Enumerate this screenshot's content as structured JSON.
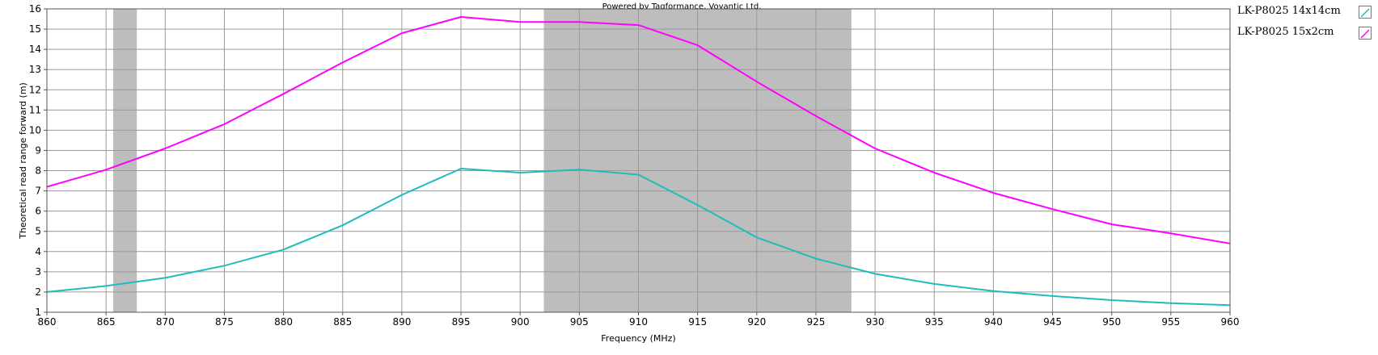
{
  "chart_data": {
    "type": "line",
    "credit": "Powered by Tagformance, Voyantic Ltd.",
    "xlabel": "Frequency (MHz)",
    "ylabel": "Theoretical read range forward (m)",
    "xlim": [
      860,
      960
    ],
    "ylim": [
      1,
      16
    ],
    "x_ticks": [
      860,
      865,
      870,
      875,
      880,
      885,
      890,
      895,
      900,
      905,
      910,
      915,
      920,
      925,
      930,
      935,
      940,
      945,
      950,
      955,
      960
    ],
    "y_ticks": [
      1,
      2,
      3,
      4,
      5,
      6,
      7,
      8,
      9,
      10,
      11,
      12,
      13,
      14,
      15,
      16
    ],
    "grid": true,
    "legend_position": "right",
    "shaded_bands": [
      {
        "from": 865.6,
        "to": 867.6
      },
      {
        "from": 902,
        "to": 928
      }
    ],
    "band_color": "#bdbdbd",
    "x": [
      860,
      865,
      870,
      875,
      880,
      885,
      890,
      895,
      900,
      905,
      910,
      915,
      920,
      925,
      930,
      935,
      940,
      945,
      950,
      955,
      960
    ],
    "series": [
      {
        "name": "LK-P8025 14x14cm",
        "color": "#1fbcbc",
        "values": [
          2.0,
          2.3,
          2.7,
          3.3,
          4.1,
          5.3,
          6.8,
          8.1,
          7.9,
          8.05,
          7.8,
          6.3,
          4.7,
          3.65,
          2.9,
          2.4,
          2.05,
          1.8,
          1.6,
          1.45,
          1.35
        ]
      },
      {
        "name": "LK-P8025 15x2cm",
        "color": "#ff00ff",
        "values": [
          7.2,
          8.05,
          9.1,
          10.3,
          11.8,
          13.35,
          14.8,
          15.6,
          15.35,
          15.35,
          15.2,
          14.2,
          12.4,
          10.7,
          9.1,
          7.9,
          6.9,
          6.1,
          5.35,
          4.9,
          4.4
        ]
      }
    ]
  }
}
